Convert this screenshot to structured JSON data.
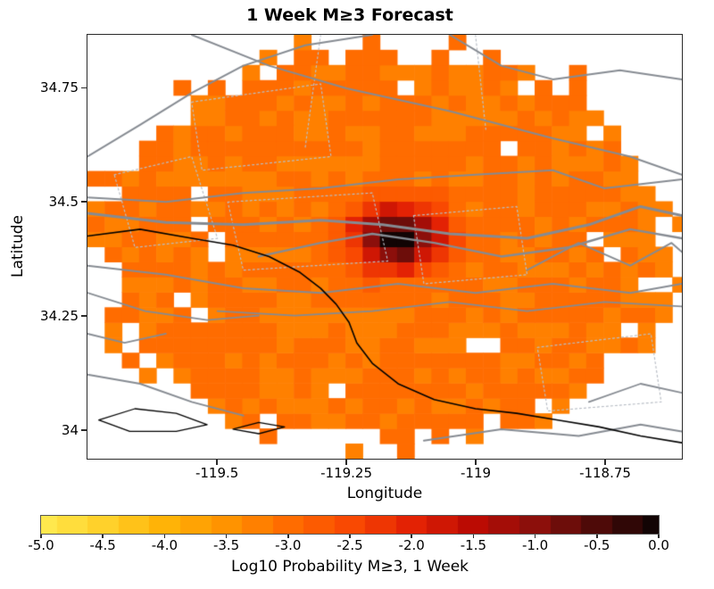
{
  "title": "1 Week M≥3 Forecast",
  "axes": {
    "xlabel": "Longitude",
    "ylabel": "Latitude",
    "x_range": [
      -119.752,
      -118.6
    ],
    "y_range": [
      33.935,
      34.868
    ],
    "x_ticks": [
      -119.5,
      -119.25,
      -119.0,
      -118.75
    ],
    "x_tick_labels": [
      "-119.5",
      "-119.25",
      "-119",
      "-118.75"
    ],
    "y_ticks": [
      34.0,
      34.25,
      34.5,
      34.75
    ],
    "y_tick_labels": [
      "34",
      "34.25",
      "34.5",
      "34.75"
    ]
  },
  "colorbar": {
    "label": "Log10 Probability M≥3, 1 Week",
    "value_range": [
      -5,
      0
    ],
    "tick_values": [
      -5.0,
      -4.5,
      -4.0,
      -3.5,
      -3.0,
      -2.5,
      -2.0,
      -1.5,
      -1.0,
      -0.5,
      0.0
    ],
    "tick_labels": [
      "-5.0",
      "-4.5",
      "-4.0",
      "-3.5",
      "-3.0",
      "-2.5",
      "-2.0",
      "-1.5",
      "-1.0",
      "-0.5",
      "0.0"
    ],
    "stops": [
      {
        "v": -5.0,
        "color": "#ffe84d"
      },
      {
        "v": -4.5,
        "color": "#ffd12b"
      },
      {
        "v": -4.0,
        "color": "#ffb307"
      },
      {
        "v": -3.5,
        "color": "#ff9300"
      },
      {
        "v": -3.0,
        "color": "#ff6c00"
      },
      {
        "v": -2.5,
        "color": "#f94902"
      },
      {
        "v": -2.0,
        "color": "#e32204"
      },
      {
        "v": -1.5,
        "color": "#bb0b03"
      },
      {
        "v": -1.0,
        "color": "#8c0f0b"
      },
      {
        "v": -0.5,
        "color": "#4e0a08"
      },
      {
        "v": 0.0,
        "color": "#120404"
      }
    ]
  },
  "chart_data": {
    "type": "heatmap",
    "quantity": "log10 probability of M>=3 earthquake in 1 week, per cell",
    "value_range": [
      -5,
      0
    ],
    "cell_size_deg": 0.033333,
    "value_step": 0.25,
    "hotspot": {
      "lon": -119.15,
      "lat": 34.425,
      "peak_value": 0.0
    },
    "footprint": {
      "center": [
        -119.175,
        34.4
      ],
      "semi_axes_deg": [
        0.55,
        0.44
      ],
      "edge_value": -5.0
    },
    "model": {
      "background": {
        "base": -5.0,
        "amp": 1.8,
        "center": [
          -119.175,
          34.4
        ],
        "sigma": [
          0.38,
          0.3
        ]
      },
      "core": {
        "base": -3.1,
        "amp": 3.1,
        "center": [
          -119.15,
          34.425
        ],
        "sigma": [
          0.085,
          0.068
        ]
      },
      "noise_amp": 0.35,
      "edge_raggedness": 0.18
    },
    "map_lines": {
      "fault_color": "#868b92",
      "coast_color": "#000000",
      "dotted_color": "#b9bec6",
      "faults": [
        {
          "width": 3.0,
          "points": [
            [
              -119.752,
              34.475
            ],
            [
              -119.6,
              34.455
            ],
            [
              -119.45,
              34.45
            ],
            [
              -119.3,
              34.46
            ],
            [
              -119.18,
              34.45
            ],
            [
              -119.05,
              34.43
            ],
            [
              -118.9,
              34.42
            ],
            [
              -118.78,
              34.45
            ],
            [
              -118.68,
              34.49
            ],
            [
              -118.6,
              34.47
            ]
          ]
        },
        {
          "width": 2.0,
          "points": [
            [
              -119.752,
              34.51
            ],
            [
              -119.6,
              34.5
            ],
            [
              -119.45,
              34.52
            ],
            [
              -119.3,
              34.53
            ],
            [
              -119.15,
              34.55
            ],
            [
              -119.0,
              34.56
            ],
            [
              -118.85,
              34.57
            ],
            [
              -118.75,
              34.53
            ],
            [
              -118.6,
              34.55
            ]
          ]
        },
        {
          "width": 2.0,
          "points": [
            [
              -119.752,
              34.6
            ],
            [
              -119.65,
              34.67
            ],
            [
              -119.55,
              34.74
            ],
            [
              -119.45,
              34.8
            ],
            [
              -119.33,
              34.845
            ],
            [
              -119.2,
              34.868
            ]
          ]
        },
        {
          "width": 2.0,
          "points": [
            [
              -119.55,
              34.868
            ],
            [
              -119.4,
              34.8
            ],
            [
              -119.25,
              34.75
            ],
            [
              -119.05,
              34.7
            ],
            [
              -118.85,
              34.64
            ],
            [
              -118.7,
              34.6
            ],
            [
              -118.6,
              34.56
            ]
          ]
        },
        {
          "width": 2.0,
          "points": [
            [
              -119.05,
              34.868
            ],
            [
              -118.95,
              34.8
            ],
            [
              -118.85,
              34.77
            ],
            [
              -118.72,
              34.79
            ],
            [
              -118.6,
              34.77
            ]
          ]
        },
        {
          "width": 2.0,
          "points": [
            [
              -119.752,
              34.36
            ],
            [
              -119.6,
              34.34
            ],
            [
              -119.45,
              34.31
            ],
            [
              -119.3,
              34.3
            ],
            [
              -119.15,
              34.32
            ],
            [
              -119.0,
              34.3
            ],
            [
              -118.85,
              34.32
            ],
            [
              -118.7,
              34.3
            ],
            [
              -118.6,
              34.32
            ]
          ]
        },
        {
          "width": 1.8,
          "points": [
            [
              -119.5,
              34.26
            ],
            [
              -119.35,
              34.25
            ],
            [
              -119.2,
              34.26
            ],
            [
              -119.05,
              34.28
            ],
            [
              -118.9,
              34.26
            ],
            [
              -118.75,
              34.28
            ],
            [
              -118.6,
              34.27
            ]
          ]
        },
        {
          "width": 2.4,
          "points": [
            [
              -119.42,
              34.38
            ],
            [
              -119.3,
              34.41
            ],
            [
              -119.2,
              34.43
            ],
            [
              -119.08,
              34.41
            ],
            [
              -118.95,
              34.38
            ],
            [
              -118.82,
              34.4
            ],
            [
              -118.7,
              34.44
            ],
            [
              -118.6,
              34.42
            ]
          ]
        },
        {
          "width": 2.0,
          "points": [
            [
              -118.9,
              34.35
            ],
            [
              -118.8,
              34.41
            ],
            [
              -118.7,
              34.36
            ],
            [
              -118.62,
              34.41
            ],
            [
              -118.6,
              34.39
            ]
          ]
        },
        {
          "width": 2.0,
          "points": [
            [
              -119.752,
              34.12
            ],
            [
              -119.65,
              34.1
            ],
            [
              -119.55,
              34.06
            ],
            [
              -119.45,
              34.03
            ]
          ]
        },
        {
          "width": 2.0,
          "points": [
            [
              -119.1,
              33.975
            ],
            [
              -118.95,
              34.0
            ],
            [
              -118.8,
              33.985
            ],
            [
              -118.68,
              34.01
            ],
            [
              -118.6,
              33.995
            ]
          ]
        },
        {
          "width": 1.8,
          "points": [
            [
              -118.78,
              34.06
            ],
            [
              -118.68,
              34.1
            ],
            [
              -118.6,
              34.08
            ]
          ]
        },
        {
          "width": 1.8,
          "points": [
            [
              -119.752,
              34.3
            ],
            [
              -119.64,
              34.26
            ],
            [
              -119.52,
              34.24
            ],
            [
              -119.42,
              34.25
            ]
          ]
        },
        {
          "width": 1.8,
          "points": [
            [
              -119.752,
              34.21
            ],
            [
              -119.68,
              34.19
            ],
            [
              -119.6,
              34.21
            ]
          ]
        }
      ],
      "coastline": [
        {
          "width": 1.6,
          "points": [
            [
              -119.752,
              34.425
            ],
            [
              -119.65,
              34.44
            ],
            [
              -119.55,
              34.42
            ],
            [
              -119.47,
              34.405
            ],
            [
              -119.4,
              34.38
            ],
            [
              -119.34,
              34.345
            ],
            [
              -119.3,
              34.31
            ],
            [
              -119.27,
              34.275
            ],
            [
              -119.245,
              34.235
            ],
            [
              -119.23,
              34.19
            ],
            [
              -119.2,
              34.145
            ],
            [
              -119.15,
              34.1
            ],
            [
              -119.08,
              34.065
            ],
            [
              -119.0,
              34.045
            ],
            [
              -118.92,
              34.035
            ],
            [
              -118.84,
              34.02
            ],
            [
              -118.76,
              34.005
            ],
            [
              -118.68,
              33.985
            ],
            [
              -118.6,
              33.97
            ]
          ]
        },
        {
          "width": 1.3,
          "points": [
            [
              -119.73,
              34.02
            ],
            [
              -119.66,
              34.045
            ],
            [
              -119.58,
              34.035
            ],
            [
              -119.52,
              34.01
            ],
            [
              -119.58,
              33.995
            ],
            [
              -119.67,
              33.995
            ],
            [
              -119.73,
              34.02
            ]
          ]
        },
        {
          "width": 1.3,
          "points": [
            [
              -119.47,
              34.0
            ],
            [
              -119.42,
              34.015
            ],
            [
              -119.37,
              34.005
            ],
            [
              -119.42,
              33.99
            ],
            [
              -119.47,
              34.0
            ]
          ]
        }
      ],
      "dotted": [
        {
          "width": 1.2,
          "points": [
            [
              -119.48,
              34.5
            ],
            [
              -119.2,
              34.52
            ],
            [
              -119.17,
              34.37
            ],
            [
              -119.45,
              34.35
            ],
            [
              -119.48,
              34.5
            ]
          ]
        },
        {
          "width": 1.2,
          "points": [
            [
              -119.12,
              34.47
            ],
            [
              -118.92,
              34.49
            ],
            [
              -118.9,
              34.34
            ],
            [
              -119.1,
              34.32
            ],
            [
              -119.12,
              34.47
            ]
          ]
        },
        {
          "width": 1.2,
          "points": [
            [
              -118.88,
              34.18
            ],
            [
              -118.66,
              34.21
            ],
            [
              -118.64,
              34.06
            ],
            [
              -118.86,
              34.04
            ],
            [
              -118.88,
              34.18
            ]
          ]
        },
        {
          "width": 1.2,
          "points": [
            [
              -119.55,
              34.72
            ],
            [
              -119.3,
              34.76
            ],
            [
              -119.28,
              34.6
            ],
            [
              -119.53,
              34.57
            ],
            [
              -119.55,
              34.72
            ]
          ]
        },
        {
          "width": 1.2,
          "points": [
            [
              -119.7,
              34.56
            ],
            [
              -119.55,
              34.6
            ],
            [
              -119.5,
              34.42
            ],
            [
              -119.66,
              34.4
            ],
            [
              -119.7,
              34.56
            ]
          ]
        },
        {
          "width": 1.2,
          "points": [
            [
              -119.3,
              34.868
            ],
            [
              -119.33,
              34.62
            ]
          ]
        },
        {
          "width": 1.2,
          "points": [
            [
              -119.0,
              34.868
            ],
            [
              -118.98,
              34.66
            ]
          ]
        }
      ]
    }
  }
}
